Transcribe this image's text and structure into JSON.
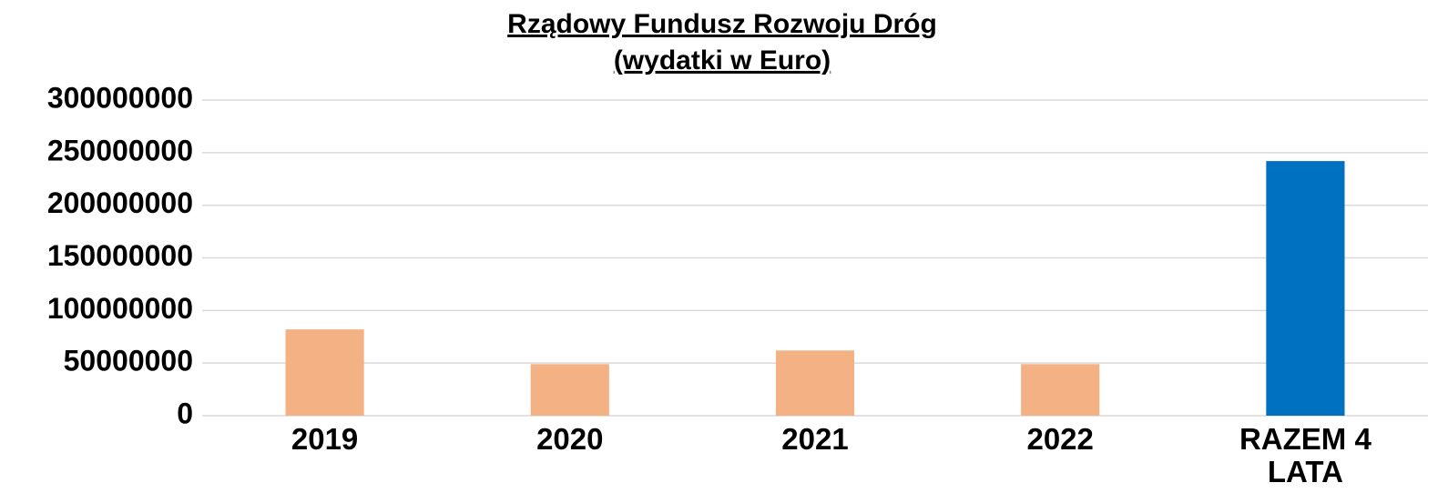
{
  "chart_data": {
    "type": "bar",
    "title": "Rządowy Fundusz Rozwoju Dróg",
    "subtitle": "(wydatki w Euro)",
    "categories": [
      "2019",
      "2020",
      "2021",
      "2022",
      "RAZEM 4 LATA"
    ],
    "values": [
      82000000,
      49000000,
      62000000,
      49000000,
      242000000
    ],
    "colors": [
      "#f4b183",
      "#f4b183",
      "#f4b183",
      "#f4b183",
      "#0070c0"
    ],
    "ylim": [
      0,
      300000000
    ],
    "yticks": [
      0,
      50000000,
      100000000,
      150000000,
      200000000,
      250000000,
      300000000
    ],
    "grid": true
  }
}
